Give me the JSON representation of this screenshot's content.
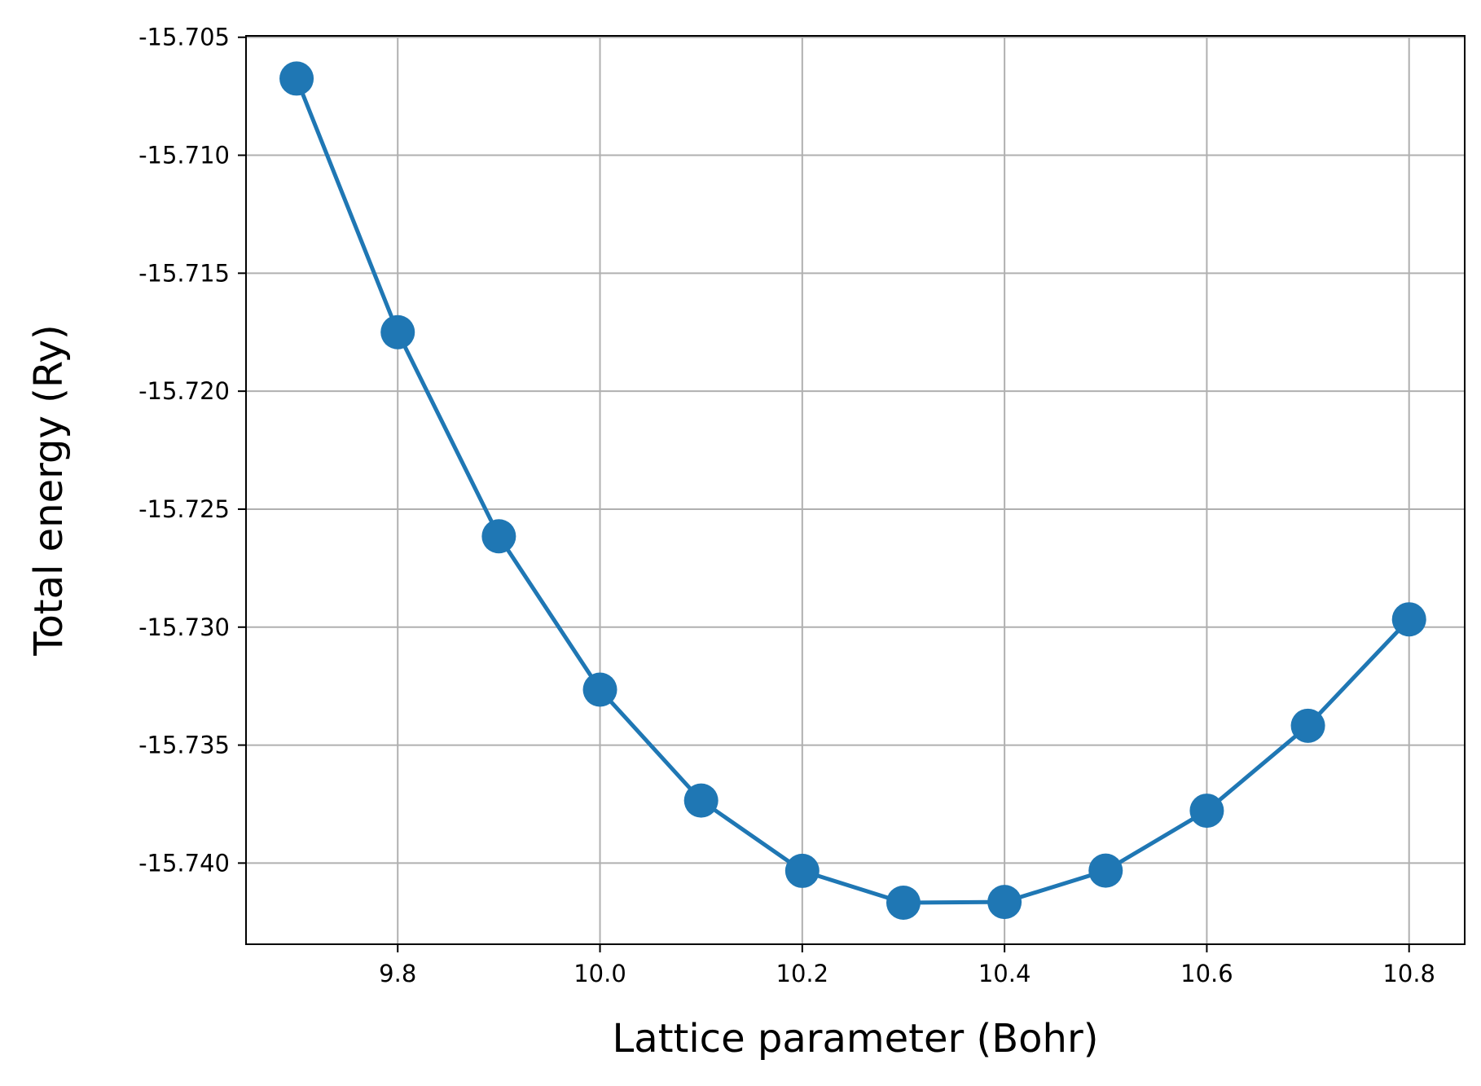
{
  "chart_data": {
    "type": "line",
    "xlabel": "Lattice parameter (Bohr)",
    "ylabel": "Total energy (Ry)",
    "xlim": [
      9.65,
      10.855
    ],
    "ylim": [
      -15.74344,
      -15.70494
    ],
    "x_ticks": [
      9.8,
      10.0,
      10.2,
      10.4,
      10.6,
      10.8
    ],
    "x_tick_labels": [
      "9.8",
      "10.0",
      "10.2",
      "10.4",
      "10.6",
      "10.8"
    ],
    "y_ticks": [
      -15.705,
      -15.71,
      -15.715,
      -15.72,
      -15.725,
      -15.73,
      -15.735,
      -15.74
    ],
    "y_tick_labels": [
      "-15.705",
      "-15.710",
      "-15.715",
      "-15.720",
      "-15.725",
      "-15.730",
      "-15.735",
      "-15.740"
    ],
    "grid": true,
    "series": [
      {
        "color": "#1f77b4",
        "marker": "circle",
        "x": [
          9.7,
          9.8,
          9.9,
          10.0,
          10.1,
          10.2,
          10.3,
          10.4,
          10.5,
          10.6,
          10.7,
          10.8
        ],
        "y": [
          -15.70675,
          -15.7175,
          -15.72615,
          -15.73265,
          -15.73735,
          -15.74033,
          -15.74168,
          -15.74165,
          -15.74032,
          -15.73778,
          -15.73418,
          -15.72967
        ]
      }
    ]
  }
}
